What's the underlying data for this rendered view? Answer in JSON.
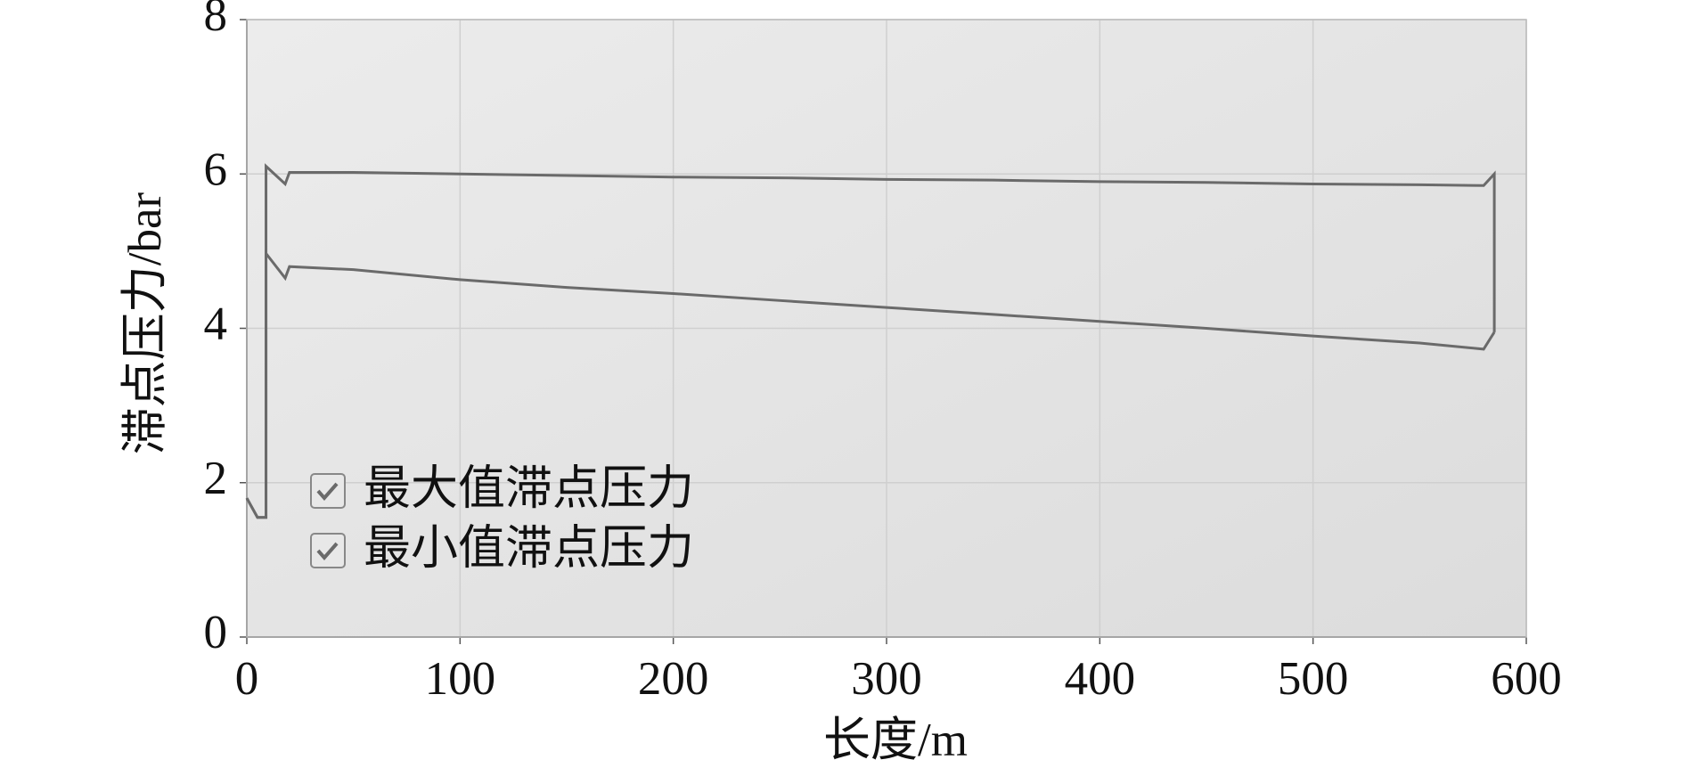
{
  "chart_data": {
    "type": "line",
    "xlabel": "长度/m",
    "ylabel": "滞点压力/bar",
    "x": [
      0,
      5,
      9,
      9,
      18,
      20,
      50,
      100,
      150,
      200,
      250,
      300,
      350,
      400,
      450,
      500,
      550,
      580,
      585,
      585
    ],
    "series": [
      {
        "name": "最大值滞点压力",
        "color": "#6a6a6a",
        "values": [
          1.8,
          1.55,
          1.55,
          6.1,
          5.87,
          6.02,
          6.02,
          6.0,
          5.98,
          5.96,
          5.95,
          5.93,
          5.92,
          5.9,
          5.89,
          5.87,
          5.86,
          5.85,
          6.0,
          3.95
        ]
      },
      {
        "name": "最小值滞点压力",
        "color": "#6a6a6a",
        "values": [
          1.8,
          1.55,
          1.55,
          4.97,
          4.65,
          4.8,
          4.76,
          4.63,
          4.53,
          4.45,
          4.36,
          4.27,
          4.18,
          4.09,
          4.0,
          3.9,
          3.81,
          3.73,
          3.95,
          null
        ]
      }
    ],
    "xlim": [
      0,
      600
    ],
    "xticks": [
      0,
      100,
      200,
      300,
      400,
      500,
      600
    ],
    "ylim": [
      0,
      8
    ],
    "yticks": [
      0,
      2,
      4,
      6,
      8
    ],
    "grid": true,
    "legend": "lower left"
  }
}
